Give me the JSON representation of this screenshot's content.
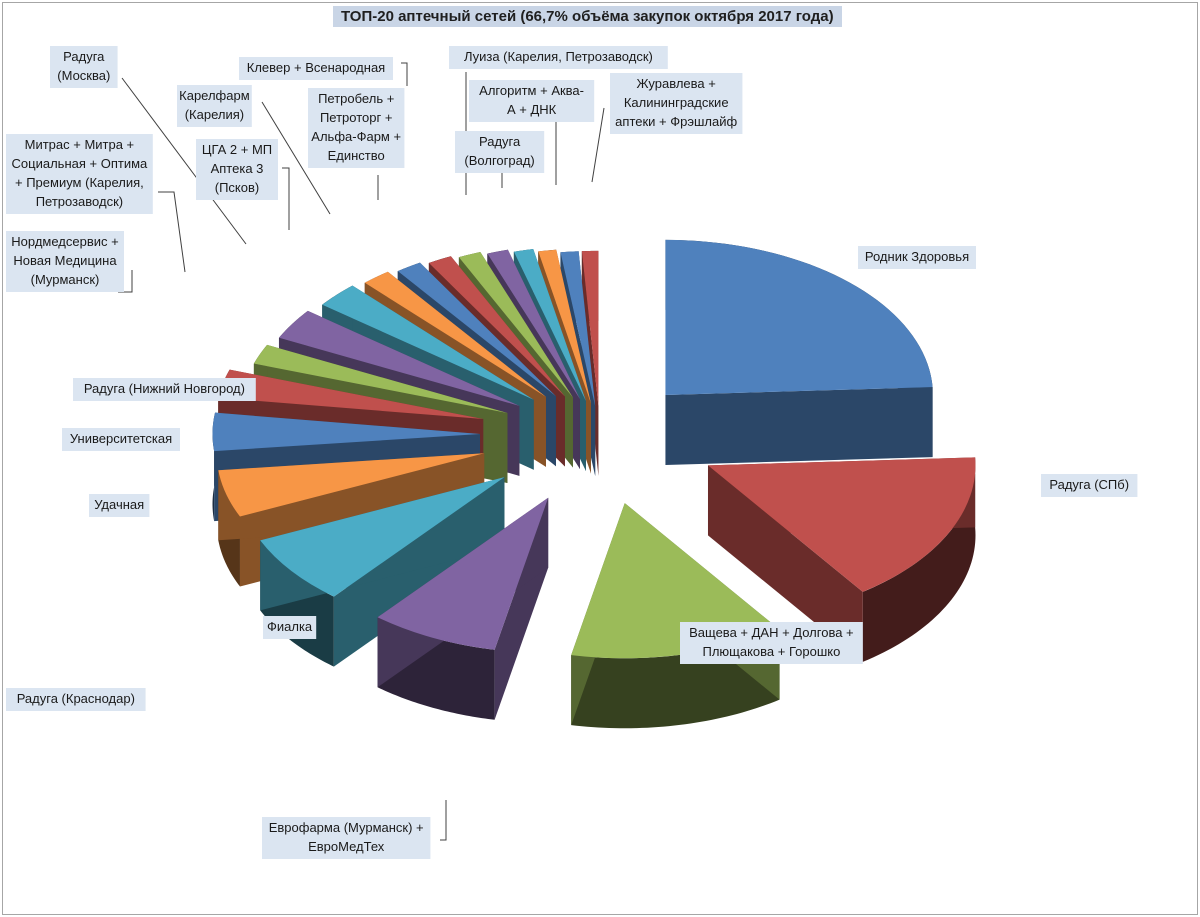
{
  "chart_data": {
    "type": "pie",
    "title": "ТОП-20 аптечный сетей (66,7% объёма закупок октября 2017 года)",
    "slices": [
      {
        "label": "Родник Здоровья",
        "value": 24.5,
        "color": "#4f81bd"
      },
      {
        "label": "Радуга (СПб)",
        "value": 16.2,
        "color": "#c0504d"
      },
      {
        "label": "Ващева + ДАН + Долгова + Плющакова + Горошко",
        "value": 13.2,
        "color": "#9bbb59"
      },
      {
        "label": "Еврофарма (Мурманск) + ЕвроМедТех",
        "value": 7.9,
        "color": "#8064a2"
      },
      {
        "label": "Фиалка",
        "value": 7.4,
        "color": "#4bacc6"
      },
      {
        "label": "Радуга (Краснодар)",
        "value": 5.0,
        "color": "#f79646"
      },
      {
        "label": "Удачная",
        "value": 4.0,
        "color": "#4f81bd"
      },
      {
        "label": "Университетская",
        "value": 3.0,
        "color": "#c0504d"
      },
      {
        "label": "Радуга (Нижний Новгород)",
        "value": 2.1,
        "color": "#9bbb59"
      },
      {
        "label": "Нордмедсервис + Новая Медицина (Мурманск)",
        "value": 3.3,
        "color": "#8064a2"
      },
      {
        "label": "Митрас + Митра + Социальная + Оптима + Премиум (Карелия, Петрозаводск)",
        "value": 2.7,
        "color": "#4bacc6"
      },
      {
        "label": "Радуга (Москва)",
        "value": 1.8,
        "color": "#f79646"
      },
      {
        "label": "ЦГА 2 + МП Аптека 3 (Псков)",
        "value": 1.6,
        "color": "#4f81bd"
      },
      {
        "label": "Карелфарм (Карелия)",
        "value": 1.5,
        "color": "#c0504d"
      },
      {
        "label": "Клевер + Всенародная",
        "value": 1.4,
        "color": "#9bbb59"
      },
      {
        "label": "Петробель + Петроторг + Альфа-Фарм + Единство",
        "value": 1.3,
        "color": "#8064a2"
      },
      {
        "label": "Луиза (Карелия, Петрозаводск)",
        "value": 1.2,
        "color": "#4bacc6"
      },
      {
        "label": "Радуга (Волгоград)",
        "value": 1.1,
        "color": "#f79646"
      },
      {
        "label": "Алгоритм + Аква-А + ДНК",
        "value": 1.1,
        "color": "#4f81bd"
      },
      {
        "label": "Журавлева + Калининградские аптеки + Фрэшлайф",
        "value": 1.0,
        "color": "#c0504d"
      }
    ],
    "legend": "none",
    "exploded": true,
    "style": "3d"
  }
}
